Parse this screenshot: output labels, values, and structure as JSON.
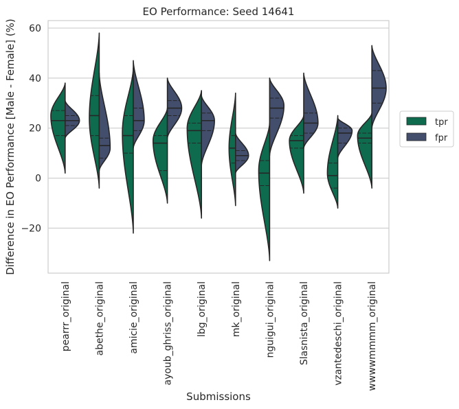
{
  "chart_data": {
    "type": "violin",
    "title": "EO Performance: Seed 14641",
    "xlabel": "Submissions",
    "ylabel": "Difference in EO Performance [Male - Female] (%)",
    "ylim": [
      -38,
      63
    ],
    "yticks": [
      -20,
      0,
      20,
      40,
      60
    ],
    "grid": true,
    "legend_position": "right",
    "split": true,
    "inner": "quartiles",
    "categories": [
      "pearrr_original",
      "abethe_original",
      "amicie_original",
      "ayoub_ghriss_original",
      "lbg_original",
      "mk_original",
      "nguigui_original",
      "Slasnista_original",
      "vzantedeschi_original",
      "wwwwmmmm_original"
    ],
    "series": [
      {
        "name": "tpr",
        "color": "#0e6b4e",
        "violins": [
          {
            "min": 2,
            "q1": 17,
            "median": 23,
            "q3": 27,
            "max": 38,
            "peak": 25,
            "width": 0.55
          },
          {
            "min": -4,
            "q1": 17,
            "median": 25,
            "q3": 33,
            "max": 58,
            "peak": 24,
            "width": 0.38
          },
          {
            "min": -22,
            "q1": 10,
            "median": 17,
            "q3": 25,
            "max": 44,
            "peak": 18,
            "width": 0.42
          },
          {
            "min": -10,
            "q1": 3,
            "median": 14,
            "q3": 17,
            "max": 28,
            "peak": 15,
            "width": 0.55
          },
          {
            "min": -16,
            "q1": 14,
            "median": 19,
            "q3": 22,
            "max": 35,
            "peak": 20,
            "width": 0.55
          },
          {
            "min": -11,
            "q1": 6,
            "median": 12,
            "q3": 17,
            "max": 34,
            "peak": 12,
            "width": 0.25
          },
          {
            "min": -33,
            "q1": -3,
            "median": 2,
            "q3": 7,
            "max": 22,
            "peak": 3,
            "width": 0.42
          },
          {
            "min": -6,
            "q1": 12,
            "median": 15,
            "q3": 17,
            "max": 25,
            "peak": 15,
            "width": 0.55
          },
          {
            "min": -12,
            "q1": -4,
            "median": 1,
            "q3": 6,
            "max": 25,
            "peak": 2,
            "width": 0.4
          },
          {
            "min": -4,
            "q1": 14,
            "median": 16,
            "q3": 18,
            "max": 26,
            "peak": 17,
            "width": 0.55
          }
        ]
      },
      {
        "name": "fpr",
        "color": "#434e6c",
        "violins": [
          {
            "min": 16,
            "q1": 21,
            "median": 23,
            "q3": 25,
            "max": 31,
            "peak": 23,
            "width": 0.55
          },
          {
            "min": 3,
            "q1": 8,
            "median": 13,
            "q3": 16,
            "max": 42,
            "peak": 12,
            "width": 0.42
          },
          {
            "min": 12,
            "q1": 19,
            "median": 23,
            "q3": 28,
            "max": 47,
            "peak": 23,
            "width": 0.42
          },
          {
            "min": 16,
            "q1": 25,
            "median": 28,
            "q3": 31,
            "max": 40,
            "peak": 28,
            "width": 0.55
          },
          {
            "min": 5,
            "q1": 19,
            "median": 23,
            "q3": 26,
            "max": 33,
            "peak": 23,
            "width": 0.5
          },
          {
            "min": 2,
            "q1": 7,
            "median": 9,
            "q3": 11,
            "max": 18,
            "peak": 9,
            "width": 0.5
          },
          {
            "min": 9,
            "q1": 24,
            "median": 28,
            "q3": 32,
            "max": 40,
            "peak": 29,
            "width": 0.55
          },
          {
            "min": 12,
            "q1": 18,
            "median": 22,
            "q3": 26,
            "max": 42,
            "peak": 22,
            "width": 0.55
          },
          {
            "min": 8,
            "q1": 14,
            "median": 18,
            "q3": 20,
            "max": 24,
            "peak": 19,
            "width": 0.55
          },
          {
            "min": 20,
            "q1": 30,
            "median": 36,
            "q3": 43,
            "max": 53,
            "peak": 36,
            "width": 0.55
          }
        ]
      }
    ]
  }
}
